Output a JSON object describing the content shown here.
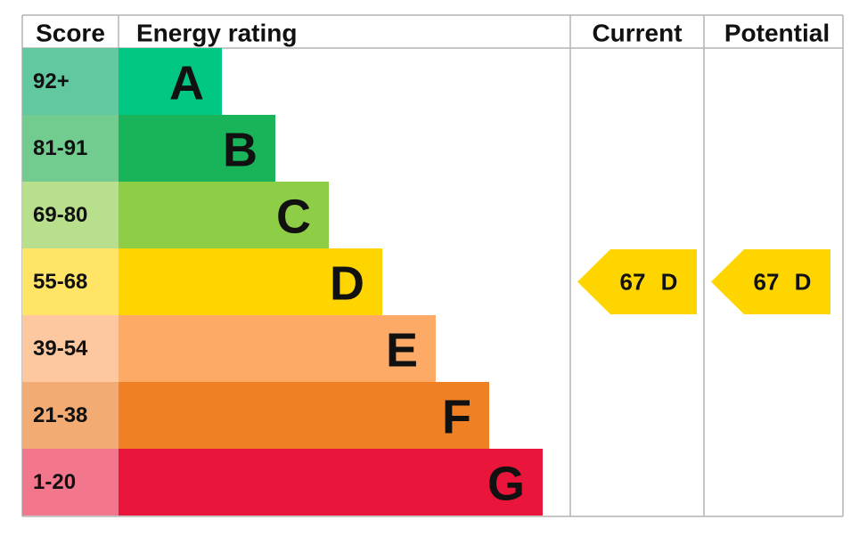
{
  "header": {
    "score": "Score",
    "energy_rating": "Energy rating",
    "current": "Current",
    "potential": "Potential"
  },
  "rows": [
    {
      "score": "92+",
      "letter": "A"
    },
    {
      "score": "81-91",
      "letter": "B"
    },
    {
      "score": "69-80",
      "letter": "C"
    },
    {
      "score": "55-68",
      "letter": "D"
    },
    {
      "score": "39-54",
      "letter": "E"
    },
    {
      "score": "21-38",
      "letter": "F"
    },
    {
      "score": "1-20",
      "letter": "G"
    }
  ],
  "current": {
    "score": 67,
    "letter": "D"
  },
  "potential": {
    "score": 67,
    "letter": "D"
  }
}
